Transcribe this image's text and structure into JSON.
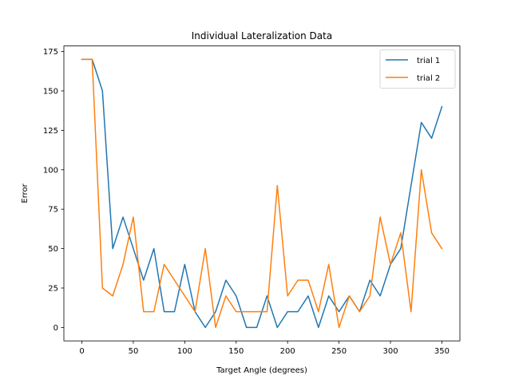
{
  "chart_data": {
    "type": "line",
    "title": "Individual Lateralization Data",
    "xlabel": "Target Angle (degrees)",
    "ylabel": "Error",
    "xlim": [
      -17.5,
      367.5
    ],
    "ylim": [
      -8.5,
      178.5
    ],
    "xticks": [
      0,
      50,
      100,
      150,
      200,
      250,
      300,
      350
    ],
    "yticks": [
      0,
      25,
      50,
      75,
      100,
      125,
      150,
      175
    ],
    "grid": false,
    "legend_position": "top-right",
    "x": [
      0,
      10,
      20,
      30,
      40,
      50,
      60,
      70,
      80,
      90,
      100,
      110,
      120,
      130,
      140,
      150,
      160,
      170,
      180,
      190,
      200,
      210,
      220,
      230,
      240,
      250,
      260,
      270,
      280,
      290,
      300,
      310,
      320,
      330,
      340,
      350
    ],
    "series": [
      {
        "name": "trial 1",
        "color": "#1f77b4",
        "values": [
          170,
          170,
          150,
          50,
          70,
          50,
          30,
          50,
          10,
          10,
          40,
          10,
          0,
          10,
          30,
          20,
          0,
          0,
          20,
          0,
          10,
          10,
          20,
          0,
          20,
          10,
          20,
          10,
          30,
          20,
          40,
          50,
          90,
          130,
          120,
          140
        ]
      },
      {
        "name": "trial 2",
        "color": "#ff7f0e",
        "values": [
          170,
          170,
          25,
          20,
          40,
          70,
          10,
          10,
          40,
          30,
          20,
          10,
          50,
          0,
          20,
          10,
          10,
          10,
          10,
          90,
          20,
          30,
          30,
          10,
          40,
          0,
          20,
          10,
          20,
          70,
          40,
          60,
          10,
          100,
          60,
          50
        ]
      }
    ]
  }
}
